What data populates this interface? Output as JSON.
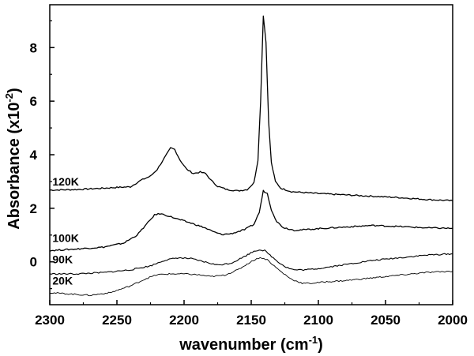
{
  "chart_data": {
    "type": "line",
    "xlabel": "wavenumber (cm",
    "xlabel_sup": "-1",
    "xlabel_end": ")",
    "ylabel": "Absorbance (x10",
    "ylabel_sup": "-2",
    "ylabel_end": ")",
    "xlim": [
      2300,
      2000
    ],
    "ylim": [
      -1.6,
      9.6
    ],
    "x_ticks": [
      2300,
      2250,
      2200,
      2150,
      2100,
      2050,
      2000
    ],
    "y_ticks": [
      0,
      2,
      4,
      6,
      8
    ],
    "x_tick_labels": [
      "2300",
      "2250",
      "2200",
      "2150",
      "2100",
      "2050",
      "2000"
    ],
    "y_tick_labels": [
      "0",
      "2",
      "4",
      "6",
      "8"
    ],
    "grid": false,
    "series": [
      {
        "name": "120K",
        "label_at": [
          2298,
          2.85
        ],
        "stroke": 1.3,
        "points": [
          [
            2300,
            2.68
          ],
          [
            2280,
            2.7
          ],
          [
            2260,
            2.75
          ],
          [
            2250,
            2.78
          ],
          [
            2240,
            2.8
          ],
          [
            2232,
            3.05
          ],
          [
            2225,
            3.2
          ],
          [
            2220,
            3.45
          ],
          [
            2215,
            3.85
          ],
          [
            2210,
            4.25
          ],
          [
            2207,
            4.2
          ],
          [
            2203,
            3.8
          ],
          [
            2198,
            3.45
          ],
          [
            2193,
            3.3
          ],
          [
            2188,
            3.35
          ],
          [
            2184,
            3.3
          ],
          [
            2180,
            3.05
          ],
          [
            2175,
            2.82
          ],
          [
            2168,
            2.7
          ],
          [
            2160,
            2.65
          ],
          [
            2153,
            2.7
          ],
          [
            2148,
            2.95
          ],
          [
            2145,
            3.8
          ],
          [
            2143,
            6.0
          ],
          [
            2141,
            9.2
          ],
          [
            2139,
            8.2
          ],
          [
            2137,
            5.2
          ],
          [
            2135,
            3.7
          ],
          [
            2132,
            3.0
          ],
          [
            2128,
            2.75
          ],
          [
            2120,
            2.62
          ],
          [
            2100,
            2.55
          ],
          [
            2080,
            2.5
          ],
          [
            2060,
            2.45
          ],
          [
            2040,
            2.4
          ],
          [
            2020,
            2.33
          ],
          [
            2000,
            2.28
          ]
        ]
      },
      {
        "name": "100K",
        "label_at": [
          2298,
          0.75
        ],
        "stroke": 1.3,
        "points": [
          [
            2300,
            0.42
          ],
          [
            2280,
            0.48
          ],
          [
            2260,
            0.55
          ],
          [
            2245,
            0.7
          ],
          [
            2235,
            1.0
          ],
          [
            2228,
            1.4
          ],
          [
            2222,
            1.75
          ],
          [
            2218,
            1.8
          ],
          [
            2212,
            1.72
          ],
          [
            2205,
            1.6
          ],
          [
            2195,
            1.45
          ],
          [
            2185,
            1.28
          ],
          [
            2178,
            1.12
          ],
          [
            2172,
            1.02
          ],
          [
            2165,
            1.05
          ],
          [
            2155,
            1.2
          ],
          [
            2148,
            1.4
          ],
          [
            2144,
            1.85
          ],
          [
            2141,
            2.65
          ],
          [
            2138,
            2.55
          ],
          [
            2135,
            1.95
          ],
          [
            2131,
            1.5
          ],
          [
            2126,
            1.28
          ],
          [
            2118,
            1.18
          ],
          [
            2110,
            1.2
          ],
          [
            2100,
            1.24
          ],
          [
            2080,
            1.3
          ],
          [
            2060,
            1.36
          ],
          [
            2040,
            1.32
          ],
          [
            2020,
            1.27
          ],
          [
            2000,
            1.25
          ]
        ]
      },
      {
        "name": "90K",
        "label_at": [
          2298,
          -0.05
        ],
        "stroke": 1.1,
        "points": [
          [
            2300,
            -0.45
          ],
          [
            2280,
            -0.45
          ],
          [
            2260,
            -0.4
          ],
          [
            2240,
            -0.3
          ],
          [
            2225,
            -0.15
          ],
          [
            2215,
            0.05
          ],
          [
            2205,
            0.15
          ],
          [
            2195,
            0.12
          ],
          [
            2185,
            0.0
          ],
          [
            2175,
            -0.12
          ],
          [
            2165,
            -0.05
          ],
          [
            2155,
            0.2
          ],
          [
            2148,
            0.4
          ],
          [
            2144,
            0.45
          ],
          [
            2140,
            0.42
          ],
          [
            2136,
            0.25
          ],
          [
            2130,
            0.0
          ],
          [
            2124,
            -0.2
          ],
          [
            2118,
            -0.3
          ],
          [
            2110,
            -0.3
          ],
          [
            2100,
            -0.25
          ],
          [
            2080,
            -0.1
          ],
          [
            2060,
            0.05
          ],
          [
            2040,
            0.15
          ],
          [
            2020,
            0.25
          ],
          [
            2000,
            0.3
          ]
        ]
      },
      {
        "name": "20K",
        "label_at": [
          2298,
          -0.85
        ],
        "stroke": 0.9,
        "points": [
          [
            2300,
            -1.15
          ],
          [
            2285,
            -1.2
          ],
          [
            2270,
            -1.25
          ],
          [
            2255,
            -1.15
          ],
          [
            2240,
            -0.9
          ],
          [
            2228,
            -0.62
          ],
          [
            2220,
            -0.48
          ],
          [
            2210,
            -0.45
          ],
          [
            2200,
            -0.45
          ],
          [
            2190,
            -0.48
          ],
          [
            2180,
            -0.55
          ],
          [
            2170,
            -0.5
          ],
          [
            2160,
            -0.3
          ],
          [
            2152,
            -0.05
          ],
          [
            2146,
            0.12
          ],
          [
            2142,
            0.15
          ],
          [
            2138,
            0.08
          ],
          [
            2133,
            -0.15
          ],
          [
            2127,
            -0.4
          ],
          [
            2120,
            -0.65
          ],
          [
            2112,
            -0.8
          ],
          [
            2105,
            -0.8
          ],
          [
            2095,
            -0.75
          ],
          [
            2080,
            -0.7
          ],
          [
            2060,
            -0.6
          ],
          [
            2040,
            -0.5
          ],
          [
            2020,
            -0.4
          ],
          [
            2000,
            -0.35
          ]
        ]
      }
    ]
  }
}
